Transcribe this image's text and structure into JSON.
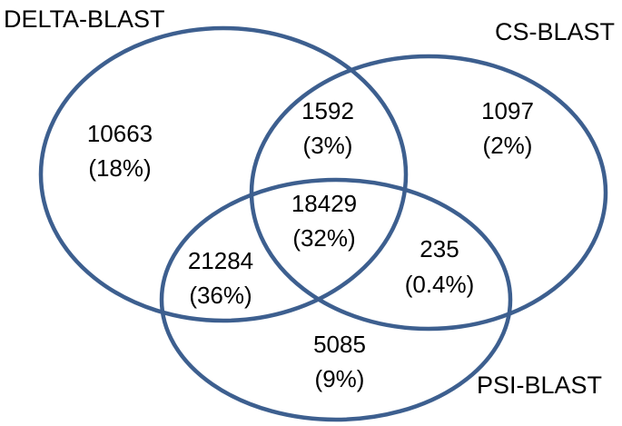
{
  "style": {
    "circle_color": "#3d5f8f",
    "text_color": "#000000"
  },
  "sets": {
    "delta": "DELTA-BLAST",
    "cs": "CS-BLAST",
    "psi": "PSI-BLAST"
  },
  "regions": {
    "delta_only": {
      "count": "10663",
      "percent": "(18%)"
    },
    "delta_cs": {
      "count": "1592",
      "percent": "(3%)"
    },
    "cs_only": {
      "count": "1097",
      "percent": "(2%)"
    },
    "all_three": {
      "count": "18429",
      "percent": "(32%)"
    },
    "delta_psi": {
      "count": "21284",
      "percent": "(36%)"
    },
    "cs_psi": {
      "count": "235",
      "percent": "(0.4%)"
    },
    "psi_only": {
      "count": "5085",
      "percent": "(9%)"
    }
  }
}
